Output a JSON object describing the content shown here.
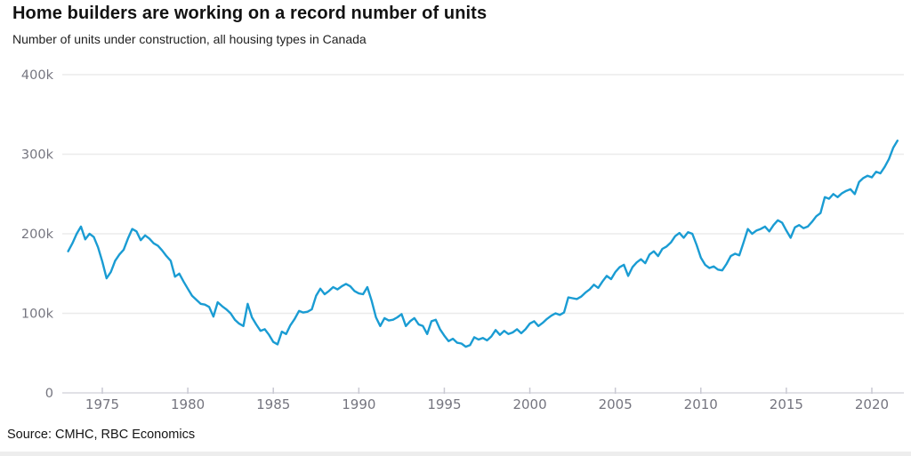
{
  "header": {
    "title": "Home builders are working on a record number of units",
    "subtitle": "Number of units under construction, all housing types in Canada"
  },
  "source": {
    "label": "Source: CMHC, RBC Economics"
  },
  "colors": {
    "line": "#1a9cd3",
    "gridline": "#ebebeb",
    "axis_line": "#d7d7de",
    "tick_mark": "#c9c9d3",
    "tick_text": "#75757f",
    "background": "#ffffff"
  },
  "chart_data": {
    "type": "line",
    "title": "Home builders are working on a record number of units",
    "subtitle": "Number of units under construction, all housing types in Canada",
    "series_name": "Units under construction (all housing types, Canada)",
    "unit": "thousands of units",
    "x_start_year": 1973.0,
    "x_step_years": 0.25,
    "ylim": [
      0,
      400000
    ],
    "xlim": [
      1972.6,
      2022.2
    ],
    "grid": "horizontal-only",
    "legend": "none",
    "yticks": [
      {
        "value": 0,
        "label": "0"
      },
      {
        "value": 100000,
        "label": "100k"
      },
      {
        "value": 200000,
        "label": "200k"
      },
      {
        "value": 300000,
        "label": "300k"
      },
      {
        "value": 400000,
        "label": "400k"
      }
    ],
    "xticks": [
      1975,
      1980,
      1985,
      1990,
      1995,
      2000,
      2005,
      2010,
      2015,
      2020
    ],
    "values_thousands": [
      178,
      188,
      200,
      209,
      193,
      200,
      196,
      183,
      165,
      144,
      152,
      166,
      174,
      180,
      194,
      206,
      203,
      192,
      198,
      194,
      188,
      185,
      179,
      172,
      166,
      146,
      150,
      140,
      131,
      122,
      117,
      112,
      111,
      108,
      96,
      114,
      109,
      105,
      100,
      92,
      87,
      84,
      112,
      95,
      86,
      78,
      80,
      73,
      64,
      61,
      77,
      74,
      85,
      93,
      103,
      101,
      102,
      105,
      122,
      131,
      124,
      128,
      133,
      130,
      134,
      137,
      134,
      128,
      125,
      124,
      133,
      116,
      95,
      84,
      94,
      91,
      92,
      95,
      99,
      84,
      90,
      94,
      86,
      84,
      74,
      90,
      92,
      80,
      72,
      65,
      68,
      63,
      62,
      58,
      60,
      70,
      67,
      69,
      66,
      71,
      79,
      73,
      78,
      74,
      76,
      80,
      75,
      80,
      87,
      90,
      84,
      88,
      93,
      97,
      100,
      98,
      101,
      120,
      119,
      118,
      121,
      126,
      130,
      136,
      132,
      140,
      147,
      143,
      152,
      158,
      161,
      147,
      158,
      164,
      168,
      163,
      174,
      178,
      172,
      181,
      184,
      189,
      197,
      201,
      195,
      202,
      200,
      186,
      170,
      161,
      157,
      159,
      155,
      154,
      162,
      172,
      175,
      173,
      189,
      206,
      200,
      204,
      206,
      209,
      203,
      211,
      217,
      214,
      204,
      195,
      208,
      211,
      207,
      209,
      215,
      222,
      226,
      246,
      244,
      250,
      246,
      251,
      254,
      256,
      250,
      265,
      270,
      273,
      271,
      278,
      276,
      284,
      294,
      308,
      317
    ]
  }
}
